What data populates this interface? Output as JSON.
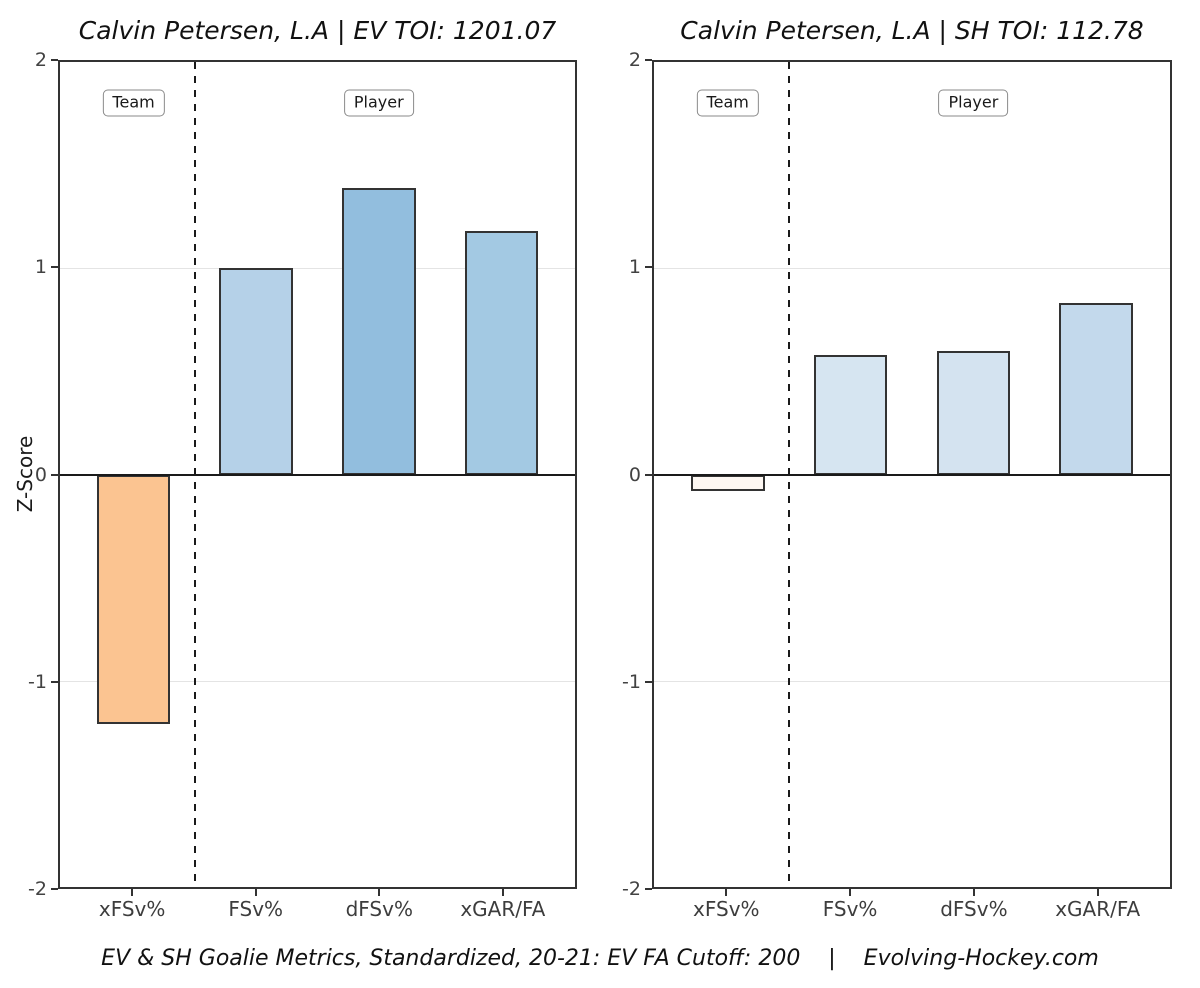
{
  "caption": "EV & SH Goalie Metrics, Standardized, 20-21: EV FA Cutoff: 200    |    Evolving-Hockey.com",
  "axis": {
    "ylabel": "Z-Score",
    "yticks": [
      2,
      1,
      0,
      -1,
      -2
    ],
    "ylim": [
      -2,
      2
    ],
    "grid_on": true
  },
  "annotations": {
    "team_label": "Team",
    "player_label": "Player"
  },
  "style_colors": {
    "axis_border": "#333333",
    "zero_line": "#1a1a1a",
    "gridline": "#e4e4e4",
    "negative_accent": "#fbc491",
    "positive_accent": "#92bede"
  },
  "chart_data": [
    {
      "type": "bar",
      "title": "Calvin Petersen, L.A | EV TOI: 1201.07",
      "categories": [
        "xFSv%",
        "FSv%",
        "dFSv%",
        "xGAR/FA"
      ],
      "values": [
        -1.21,
        1.0,
        1.39,
        1.18
      ],
      "bar_colors": [
        "#fbc491",
        "#b5d1e8",
        "#92bede",
        "#a3c9e3"
      ],
      "xlabel": "",
      "ylabel": "Z-Score",
      "ylim": [
        -2,
        2
      ],
      "xlim": [
        0.4,
        4.6
      ],
      "bar_width": 0.6,
      "divider_x": 1.5,
      "group_labels": [
        {
          "label": "Team",
          "x": 1,
          "y": 1.8
        },
        {
          "label": "Player",
          "x": 3,
          "y": 1.8
        }
      ]
    },
    {
      "type": "bar",
      "title": "Calvin Petersen, L.A | SH TOI: 112.78",
      "categories": [
        "xFSv%",
        "FSv%",
        "dFSv%",
        "xGAR/FA"
      ],
      "values": [
        -0.08,
        0.58,
        0.6,
        0.83
      ],
      "bar_colors": [
        "#fdf7f2",
        "#d6e5f1",
        "#d4e3f0",
        "#c3d9ec"
      ],
      "xlabel": "",
      "ylabel": "Z-Score",
      "ylim": [
        -2,
        2
      ],
      "xlim": [
        0.4,
        4.6
      ],
      "bar_width": 0.6,
      "divider_x": 1.5,
      "group_labels": [
        {
          "label": "Team",
          "x": 1,
          "y": 1.8
        },
        {
          "label": "Player",
          "x": 3,
          "y": 1.8
        }
      ]
    }
  ]
}
